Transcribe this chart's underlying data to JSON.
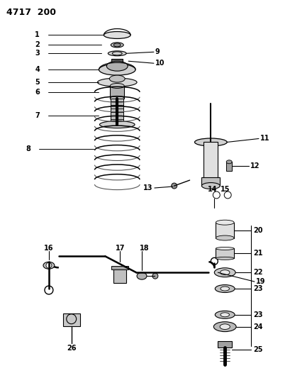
{
  "title": "4717  200",
  "bg": "#ffffff",
  "fg": "#000000",
  "fig_w": 4.09,
  "fig_h": 5.33,
  "dpi": 100
}
